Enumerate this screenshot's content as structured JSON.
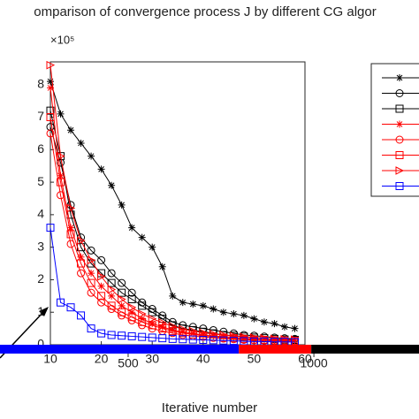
{
  "chart_data": [
    {
      "type": "line",
      "title": "omparison of convergence process J by different CG algor",
      "y_multiplier": "×10⁵",
      "xlim": [
        10,
        60
      ],
      "xticks": [
        10,
        20,
        30,
        40,
        50,
        60
      ],
      "ylim": [
        0,
        8.7
      ],
      "yticks": [
        0,
        1,
        2,
        3,
        4,
        5,
        6,
        7,
        8
      ],
      "x": [
        10,
        12,
        14,
        16,
        18,
        20,
        22,
        24,
        26,
        28,
        30,
        32,
        34,
        36,
        38,
        40,
        42,
        44,
        46,
        48,
        50,
        52,
        54,
        56,
        58
      ],
      "series": [
        {
          "color": "#000000",
          "marker": "star",
          "values": [
            8.1,
            7.1,
            6.6,
            6.2,
            5.8,
            5.4,
            4.9,
            4.3,
            3.6,
            3.3,
            3.0,
            2.4,
            1.5,
            1.3,
            1.25,
            1.2,
            1.1,
            1.0,
            0.95,
            0.9,
            0.8,
            0.7,
            0.65,
            0.55,
            0.5
          ]
        },
        {
          "color": "#000000",
          "marker": "circle",
          "values": [
            6.7,
            5.6,
            4.3,
            3.3,
            2.9,
            2.6,
            2.2,
            1.9,
            1.6,
            1.3,
            1.1,
            0.9,
            0.7,
            0.6,
            0.55,
            0.5,
            0.45,
            0.4,
            0.35,
            0.3,
            0.28,
            0.25,
            0.22,
            0.2,
            0.18
          ]
        },
        {
          "color": "#000000",
          "marker": "square",
          "values": [
            7.2,
            5.8,
            4.0,
            3.0,
            2.5,
            2.2,
            1.9,
            1.6,
            1.4,
            1.2,
            1.0,
            0.8,
            0.6,
            0.5,
            0.45,
            0.4,
            0.35,
            0.3,
            0.28,
            0.25,
            0.22,
            0.2,
            0.18,
            0.16,
            0.15
          ]
        },
        {
          "color": "#ff0000",
          "marker": "star",
          "values": [
            7.9,
            5.2,
            3.6,
            2.7,
            2.2,
            1.8,
            1.5,
            1.2,
            1.0,
            0.8,
            0.65,
            0.55,
            0.45,
            0.4,
            0.35,
            0.3,
            0.27,
            0.25,
            0.22,
            0.2,
            0.18,
            0.16,
            0.15,
            0.14,
            0.13
          ]
        },
        {
          "color": "#ff0000",
          "marker": "circle",
          "values": [
            6.5,
            4.6,
            3.1,
            2.2,
            1.6,
            1.3,
            1.1,
            0.9,
            0.75,
            0.6,
            0.5,
            0.42,
            0.36,
            0.3,
            0.27,
            0.24,
            0.21,
            0.19,
            0.17,
            0.15,
            0.14,
            0.13,
            0.12,
            0.11,
            0.1
          ]
        },
        {
          "color": "#ff0000",
          "marker": "square",
          "values": [
            7.0,
            5.0,
            3.4,
            2.5,
            1.9,
            1.5,
            1.2,
            1.0,
            0.85,
            0.7,
            0.6,
            0.5,
            0.42,
            0.36,
            0.32,
            0.28,
            0.25,
            0.22,
            0.2,
            0.18,
            0.16,
            0.15,
            0.14,
            0.13,
            0.12
          ]
        },
        {
          "color": "#ff0000",
          "marker": "triangle-right",
          "values": [
            8.6,
            5.8,
            4.2,
            3.2,
            2.6,
            2.1,
            1.7,
            1.4,
            1.15,
            0.95,
            0.8,
            0.68,
            0.57,
            0.48,
            0.42,
            0.37,
            0.33,
            0.3,
            0.27,
            0.24,
            0.22,
            0.2,
            0.18,
            0.17,
            0.16
          ]
        },
        {
          "color": "#0000ff",
          "marker": "square",
          "values": [
            3.6,
            1.3,
            1.15,
            0.9,
            0.5,
            0.35,
            0.3,
            0.28,
            0.26,
            0.24,
            0.22,
            0.2,
            0.18,
            0.17,
            0.16,
            0.15,
            0.14,
            0.13,
            0.12,
            0.11,
            0.1,
            0.1,
            0.09,
            0.09,
            0.08
          ]
        }
      ]
    },
    {
      "type": "band",
      "xlabel": "Iterative number",
      "xlim": [
        155,
        1283
      ],
      "xticks": [
        500,
        1000
      ],
      "series": [
        {
          "color": "#0000ff",
          "x": [
            155,
            798
          ]
        },
        {
          "color": "#ff0000",
          "x": [
            798,
            993
          ]
        },
        {
          "color": "#000000",
          "x": [
            993,
            1283
          ]
        }
      ]
    }
  ]
}
